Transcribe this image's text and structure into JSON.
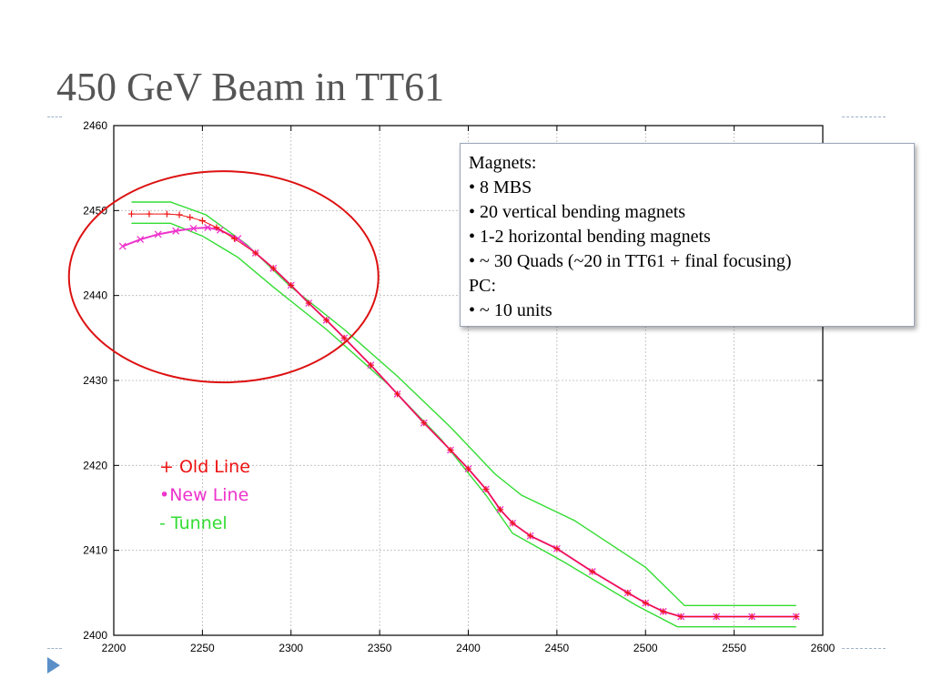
{
  "slide": {
    "title": "450 GeV Beam in TT61"
  },
  "info_box": {
    "lines": [
      "Magnets:",
      "• 8 MBS",
      "• 20 vertical bending magnets",
      "• 1-2 horizontal bending magnets",
      "• ~ 30 Quads (~20 in TT61 + final focusing)",
      "PC:",
      "• ~ 10 units"
    ]
  },
  "legend": {
    "old_line": "+ Old Line",
    "new_line": "•New Line",
    "tunnel": "- Tunnel"
  },
  "chart_data": {
    "type": "line",
    "xlim": [
      2200,
      2600
    ],
    "ylim": [
      2400,
      2460
    ],
    "x_ticks": [
      2200,
      2250,
      2300,
      2350,
      2400,
      2450,
      2500,
      2550,
      2600
    ],
    "y_ticks": [
      2400,
      2410,
      2420,
      2430,
      2440,
      2450,
      2460
    ],
    "grid": true,
    "colors": {
      "old_line": "#ee1111",
      "new_line": "#ee33cc",
      "tunnel": "#33dd33",
      "highlight_ellipse": "#dd1111"
    },
    "series": [
      {
        "key": "tunnel_upper",
        "x": [
          2210,
          2232,
          2252,
          2275,
          2300,
          2330,
          2360,
          2390,
          2415,
          2430,
          2460,
          2500,
          2522,
          2585
        ],
        "y": [
          2451,
          2451,
          2449.5,
          2446,
          2441,
          2436,
          2430.5,
          2424.5,
          2419,
          2416.5,
          2413.5,
          2408,
          2403.5,
          2403.5
        ]
      },
      {
        "key": "tunnel_lower",
        "x": [
          2210,
          2232,
          2250,
          2270,
          2290,
          2320,
          2355,
          2385,
          2410,
          2425,
          2455,
          2495,
          2518,
          2585
        ],
        "y": [
          2448.5,
          2448.5,
          2447,
          2444.5,
          2441,
          2436,
          2429.5,
          2423,
          2416.5,
          2412,
          2408.5,
          2403.5,
          2401,
          2401
        ]
      },
      {
        "key": "old_line",
        "x": [
          2210,
          2220,
          2230,
          2237,
          2243,
          2250,
          2258,
          2268,
          2280,
          2290,
          2300,
          2310,
          2320,
          2330,
          2345,
          2360,
          2375,
          2390,
          2400,
          2410,
          2418,
          2425,
          2435,
          2450,
          2470,
          2490,
          2500,
          2510,
          2520,
          2540,
          2560,
          2585
        ],
        "y": [
          2449.6,
          2449.6,
          2449.6,
          2449.5,
          2449.2,
          2448.8,
          2448,
          2446.7,
          2445,
          2443.2,
          2441.2,
          2439.1,
          2437.1,
          2435,
          2431.8,
          2428.4,
          2425,
          2421.8,
          2419.6,
          2417.2,
          2414.8,
          2413.2,
          2411.7,
          2410.2,
          2407.5,
          2405,
          2403.8,
          2402.8,
          2402.2,
          2402.2,
          2402.2,
          2402.2
        ]
      },
      {
        "key": "new_line",
        "x": [
          2205,
          2215,
          2225,
          2235,
          2245,
          2253,
          2260,
          2270,
          2280,
          2290,
          2300,
          2310,
          2320,
          2330,
          2345,
          2360,
          2375,
          2390,
          2400,
          2410,
          2418,
          2425,
          2435,
          2450,
          2470,
          2490,
          2500,
          2510,
          2520,
          2540,
          2560,
          2585
        ],
        "y": [
          2445.8,
          2446.6,
          2447.2,
          2447.6,
          2447.9,
          2448,
          2447.7,
          2446.7,
          2445,
          2443.2,
          2441.2,
          2439.1,
          2437.1,
          2435,
          2431.8,
          2428.4,
          2425,
          2421.8,
          2419.6,
          2417.2,
          2414.8,
          2413.2,
          2411.7,
          2410.2,
          2407.5,
          2405,
          2403.8,
          2402.8,
          2402.2,
          2402.2,
          2402.2,
          2402.2
        ]
      }
    ]
  }
}
